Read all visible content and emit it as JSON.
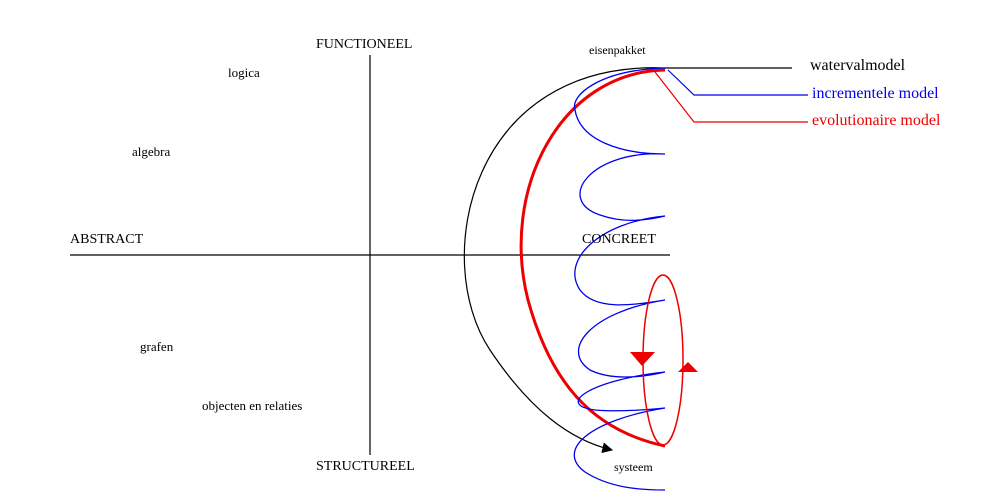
{
  "axes": {
    "top": "FUNCTIONEEL",
    "bottom": "STRUCTUREEL",
    "left": "ABSTRACT",
    "right": "CONCREET"
  },
  "quadrant_labels": {
    "logica": "logica",
    "algebra": "algebra",
    "grafen": "grafen",
    "objecten": "objecten en relaties"
  },
  "endpoints": {
    "start": "eisenpakket",
    "end": "systeem"
  },
  "legend": {
    "waterfall": {
      "label": "watervalmodel",
      "color": "#000000"
    },
    "incremental": {
      "label": "incrementele model",
      "color": "#0000ee"
    },
    "evolutionary": {
      "label": "evolutionaire model",
      "color": "#ee0000"
    }
  }
}
